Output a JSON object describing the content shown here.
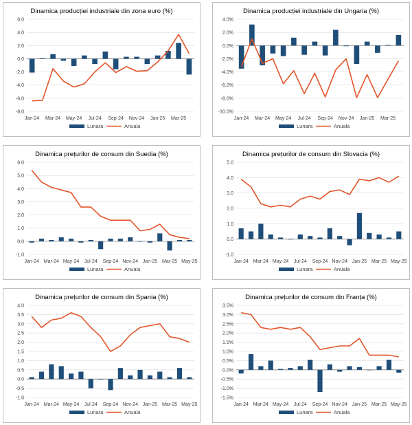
{
  "colors": {
    "monthly": "#1f4e79",
    "annual": "#e3552a",
    "grid": "#d9d9d9",
    "axis": "#808080"
  },
  "chart_data": [
    {
      "type": "bar+line",
      "title": "Dinamica producției industriale din zona euro (%)",
      "x": [
        "Jan-24",
        "Feb-24",
        "Mar-24",
        "Apr-24",
        "May-24",
        "Jun-24",
        "Jul-24",
        "Aug-24",
        "Sep-24",
        "Oct-24",
        "Nov-24",
        "Dec-24",
        "Jan-25",
        "Feb-25",
        "Mar-25",
        "Apr-25"
      ],
      "x_tick_labels": [
        "Jan-24",
        "Mar-24",
        "May-24",
        "Jul-24",
        "Sep-24",
        "Nov-24",
        "Jan-25",
        "Mar-25"
      ],
      "y_ticks": [
        "6.0",
        "4.0",
        "2.0",
        "0.0",
        "-2.0",
        "-4.0",
        "-6.0",
        "-8.0"
      ],
      "ylim": [
        -8,
        6
      ],
      "series": [
        {
          "name": "Lunara",
          "type": "bar",
          "values": [
            -2.1,
            0.1,
            0.7,
            -0.3,
            -1.1,
            0.5,
            -0.8,
            1.1,
            -1.6,
            0.3,
            0.3,
            -0.8,
            0.5,
            1.2,
            2.4,
            -2.4
          ]
        },
        {
          "name": "Anuala",
          "type": "line",
          "values": [
            -6.4,
            -6.3,
            -1.5,
            -3.4,
            -4.3,
            -3.8,
            -2.0,
            -0.6,
            -2.1,
            -1.2,
            -1.9,
            -1.8,
            -0.5,
            1.2,
            3.7,
            0.8
          ]
        }
      ],
      "legend": [
        "Lunara",
        "Anuala"
      ]
    },
    {
      "type": "bar+line",
      "title": "Dinamica producției industriale din Ungaria (%)",
      "x": [
        "Jan-24",
        "Feb-24",
        "Mar-24",
        "Apr-24",
        "May-24",
        "Jun-24",
        "Jul-24",
        "Aug-24",
        "Sep-24",
        "Oct-24",
        "Nov-24",
        "Dec-24",
        "Jan-25",
        "Feb-25",
        "Mar-25",
        "Apr-25"
      ],
      "x_tick_labels": [
        "Jan-24",
        "Mar-24",
        "May-24",
        "Jul-24",
        "Sep-24",
        "Nov-24",
        "Jan-25",
        "Mar-25"
      ],
      "y_ticks": [
        "4.0%",
        "2.0%",
        "0.0%",
        "-2.0%",
        "-4.0%",
        "-6.0%",
        "-8.0%",
        "-10.0%"
      ],
      "ylim": [
        -10,
        4
      ],
      "series": [
        {
          "name": "Lunara",
          "type": "bar",
          "values": [
            -3.5,
            3.2,
            -3.0,
            -1.2,
            -1.6,
            1.2,
            -1.4,
            0.6,
            -1.5,
            2.4,
            -0.1,
            -2.8,
            0.6,
            -1.1,
            0.1,
            1.6
          ]
        },
        {
          "name": "Anuala",
          "type": "line",
          "values": [
            -3.2,
            1.0,
            -2.7,
            -2.0,
            -5.8,
            -3.8,
            -7.3,
            -4.2,
            -7.8,
            -3.7,
            -2.0,
            -7.9,
            -4.4,
            -7.9,
            -5.1,
            -2.3
          ]
        }
      ],
      "legend": [
        "Lunara",
        "Anuala"
      ]
    },
    {
      "type": "bar+line",
      "title": "Dinamica prețurilor de consum din Suedia (%)",
      "x": [
        "Jan-24",
        "Feb-24",
        "Mar-24",
        "Apr-24",
        "May-24",
        "Jun-24",
        "Jul-24",
        "Aug-24",
        "Sep-24",
        "Oct-24",
        "Nov-24",
        "Dec-24",
        "Jan-25",
        "Feb-25",
        "Mar-25",
        "Apr-25",
        "May-25"
      ],
      "x_tick_labels": [
        "Jan-24",
        "Mar-24",
        "May-24",
        "Jul-24",
        "Sep-24",
        "Nov-24",
        "Jan-25",
        "Mar-25",
        "May-25"
      ],
      "y_ticks": [
        "6.0",
        "5.0",
        "4.0",
        "3.0",
        "2.0",
        "1.0",
        "0.0",
        "-1.0"
      ],
      "ylim": [
        -1,
        6
      ],
      "series": [
        {
          "name": "Lunara",
          "type": "bar",
          "values": [
            -0.1,
            0.2,
            0.1,
            0.3,
            0.2,
            -0.1,
            0.1,
            -0.6,
            0.2,
            0.2,
            0.3,
            0.0,
            -0.1,
            0.6,
            -0.7,
            0.1,
            0.1
          ]
        },
        {
          "name": "Anuala",
          "type": "line",
          "values": [
            5.4,
            4.5,
            4.1,
            3.9,
            3.7,
            2.6,
            2.6,
            1.9,
            1.6,
            1.6,
            1.6,
            0.8,
            0.9,
            1.3,
            0.5,
            0.3,
            0.2
          ]
        }
      ],
      "legend": [
        "Lunara",
        "Anuala"
      ]
    },
    {
      "type": "bar+line",
      "title": "Dinamica prețurilor de consum din Slovacia (%)",
      "x": [
        "Jan-24",
        "Feb-24",
        "Mar-24",
        "Apr-24",
        "May-24",
        "Jun-24",
        "Jul-24",
        "Aug-24",
        "Sep-24",
        "Oct-24",
        "Nov-24",
        "Dec-24",
        "Jan-25",
        "Feb-25",
        "Mar-25",
        "Apr-25",
        "May-25"
      ],
      "x_tick_labels": [
        "Jan-24",
        "Mar-24",
        "May-24",
        "Jul-24",
        "Sep-24",
        "Nov-24",
        "Jan-25",
        "Mar-25",
        "May-25"
      ],
      "y_ticks": [
        "5.0",
        "4.0",
        "3.0",
        "2.0",
        "1.0",
        "0.0",
        "-1.0"
      ],
      "ylim": [
        -1,
        5
      ],
      "series": [
        {
          "name": "Lunara",
          "type": "bar",
          "values": [
            0.7,
            0.5,
            1.0,
            0.3,
            0.1,
            0.0,
            0.3,
            0.2,
            0.1,
            0.7,
            0.2,
            -0.4,
            1.7,
            0.4,
            0.3,
            0.1,
            0.5
          ]
        },
        {
          "name": "Anuala",
          "type": "line",
          "values": [
            3.9,
            3.4,
            2.3,
            2.1,
            2.2,
            2.1,
            2.6,
            2.8,
            2.6,
            3.1,
            3.2,
            2.9,
            3.9,
            3.8,
            4.0,
            3.7,
            4.1
          ]
        }
      ],
      "legend": [
        "Lunara",
        "Anuala"
      ]
    },
    {
      "type": "bar+line",
      "title": "Dinamica prețurilor de consum din Spania (%)",
      "x": [
        "Jan-24",
        "Feb-24",
        "Mar-24",
        "Apr-24",
        "May-24",
        "Jun-24",
        "Jul-24",
        "Aug-24",
        "Sep-24",
        "Oct-24",
        "Nov-24",
        "Dec-24",
        "Jan-25",
        "Feb-25",
        "Mar-25",
        "Apr-25",
        "May-25"
      ],
      "x_tick_labels": [
        "Jan-24",
        "Mar-24",
        "May-24",
        "Jul-24",
        "Sep-24",
        "Nov-24",
        "Jan-25",
        "Mar-25",
        "May-25"
      ],
      "y_ticks": [
        "4.0",
        "3.5",
        "3.0",
        "2.5",
        "2.0",
        "1.5",
        "1.0",
        "0.5",
        "0.0",
        "-0.5",
        "-1.0"
      ],
      "ylim": [
        -1,
        4
      ],
      "series": [
        {
          "name": "Lunara",
          "type": "bar",
          "values": [
            0.1,
            0.4,
            0.8,
            0.7,
            0.3,
            0.4,
            -0.5,
            0.0,
            -0.6,
            0.6,
            0.2,
            0.5,
            0.2,
            0.4,
            0.1,
            0.6,
            0.1
          ]
        },
        {
          "name": "Anuala",
          "type": "line",
          "values": [
            3.4,
            2.8,
            3.2,
            3.3,
            3.6,
            3.4,
            2.8,
            2.3,
            1.5,
            1.8,
            2.4,
            2.8,
            2.9,
            3.0,
            2.3,
            2.2,
            2.0
          ]
        }
      ],
      "legend": [
        "Lunara",
        "Anuala"
      ]
    },
    {
      "type": "bar+line",
      "title": "Dinamica prețurilor de consum din Franța (%)",
      "x": [
        "Jan-24",
        "Feb-24",
        "Mar-24",
        "Apr-24",
        "May-24",
        "Jun-24",
        "Jul-24",
        "Aug-24",
        "Sep-24",
        "Oct-24",
        "Nov-24",
        "Dec-24",
        "Jan-25",
        "Feb-25",
        "Mar-25",
        "Apr-25",
        "May-25"
      ],
      "x_tick_labels": [
        "Jan-24",
        "Mar-24",
        "May-24",
        "Jul-24",
        "Sep-24",
        "Nov-24",
        "Jan-25",
        "Mar-25",
        "May-25"
      ],
      "y_ticks": [
        "3.5%",
        "3.0%",
        "2.5%",
        "2.0%",
        "1.5%",
        "1.0%",
        "0.5%",
        "0.0%",
        "-0.5%",
        "-1.0%",
        "-1.5%"
      ],
      "ylim": [
        -1.5,
        3.5
      ],
      "series": [
        {
          "name": "Lunara",
          "type": "bar",
          "values": [
            -0.2,
            0.85,
            0.2,
            0.5,
            0.05,
            0.1,
            0.2,
            0.55,
            -1.2,
            0.3,
            -0.1,
            0.2,
            0.15,
            0.0,
            0.2,
            0.55,
            -0.15
          ]
        },
        {
          "name": "Anuala",
          "type": "line",
          "values": [
            3.1,
            3.0,
            2.3,
            2.2,
            2.3,
            2.2,
            2.3,
            1.8,
            1.1,
            1.2,
            1.3,
            1.3,
            1.7,
            0.8,
            0.8,
            0.8,
            0.7
          ]
        }
      ],
      "legend": [
        "Lunara",
        "Anuala"
      ]
    }
  ]
}
